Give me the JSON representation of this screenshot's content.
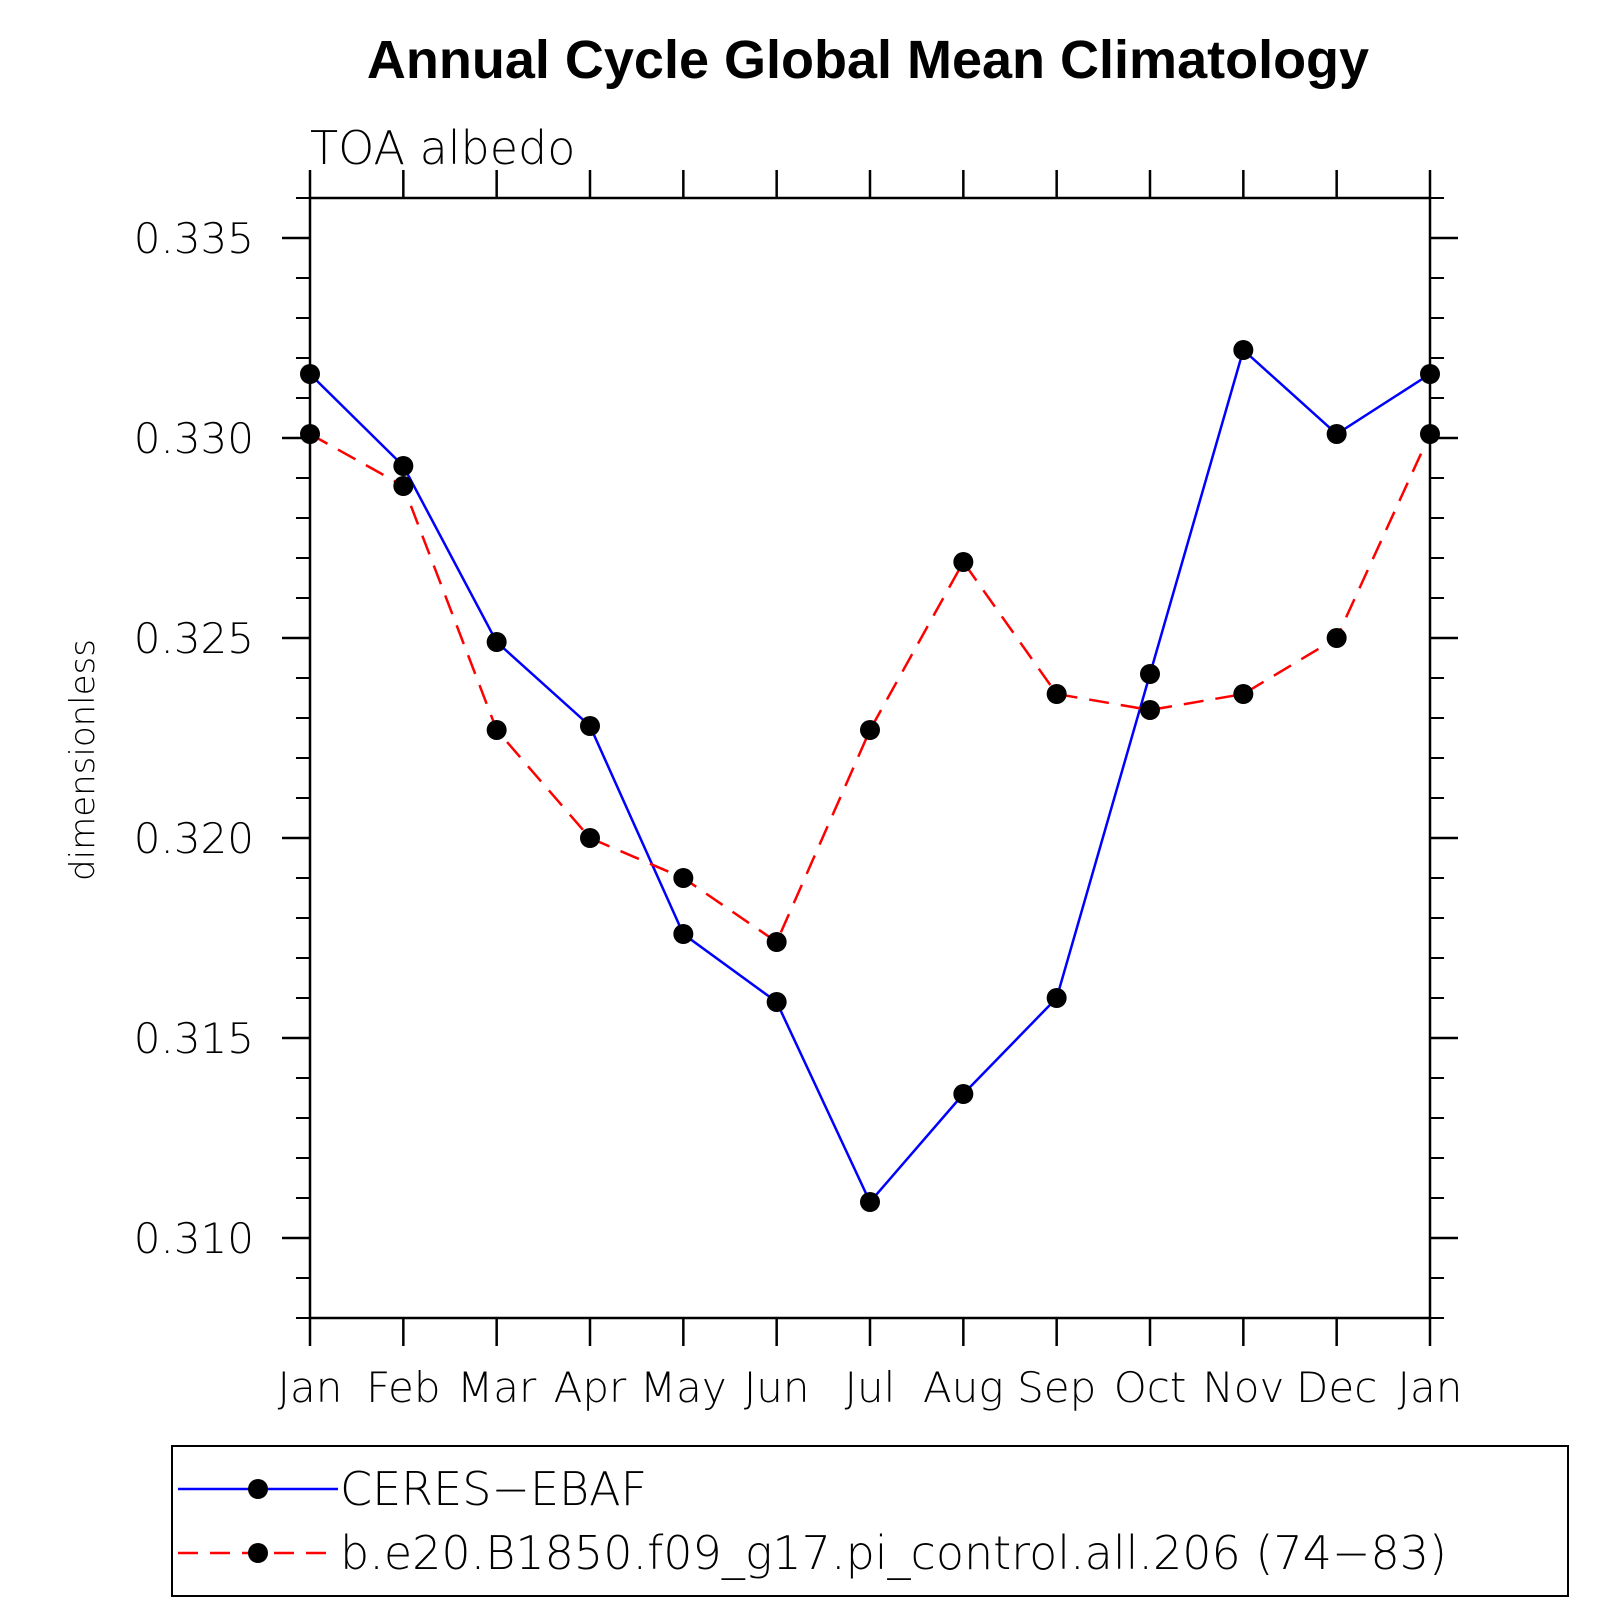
{
  "chart_data": {
    "type": "line",
    "title": "Annual Cycle Global Mean Climatology",
    "subtitle": "TOA albedo",
    "xlabel": "",
    "ylabel": "dimensionless",
    "categories": [
      "Jan",
      "Feb",
      "Mar",
      "Apr",
      "May",
      "Jun",
      "Jul",
      "Aug",
      "Sep",
      "Oct",
      "Nov",
      "Dec",
      "Jan"
    ],
    "ylim": [
      0.308,
      0.336
    ],
    "yticks": [
      0.31,
      0.315,
      0.32,
      0.325,
      0.33,
      0.335
    ],
    "ytick_labels": [
      "0.310",
      "0.315",
      "0.320",
      "0.325",
      "0.330",
      "0.335"
    ],
    "grid": false,
    "legend_position": "bottom",
    "series": [
      {
        "name": "CERES−EBAF",
        "color": "#0000ff",
        "linestyle": "solid",
        "marker": "circle",
        "values": [
          0.3316,
          0.3293,
          0.3249,
          0.3228,
          0.3176,
          0.3159,
          0.3109,
          0.3136,
          0.316,
          0.3241,
          0.3322,
          0.3301,
          0.3316
        ]
      },
      {
        "name": "b.e20.B1850.f09_g17.pi_control.all.206 (74−83)",
        "color": "#ff0000",
        "linestyle": "dashed",
        "marker": "circle",
        "values": [
          0.3301,
          0.3288,
          0.3227,
          0.32,
          0.319,
          0.3174,
          0.3227,
          0.3269,
          0.3236,
          0.3232,
          0.3236,
          0.325,
          0.3301
        ]
      }
    ]
  }
}
